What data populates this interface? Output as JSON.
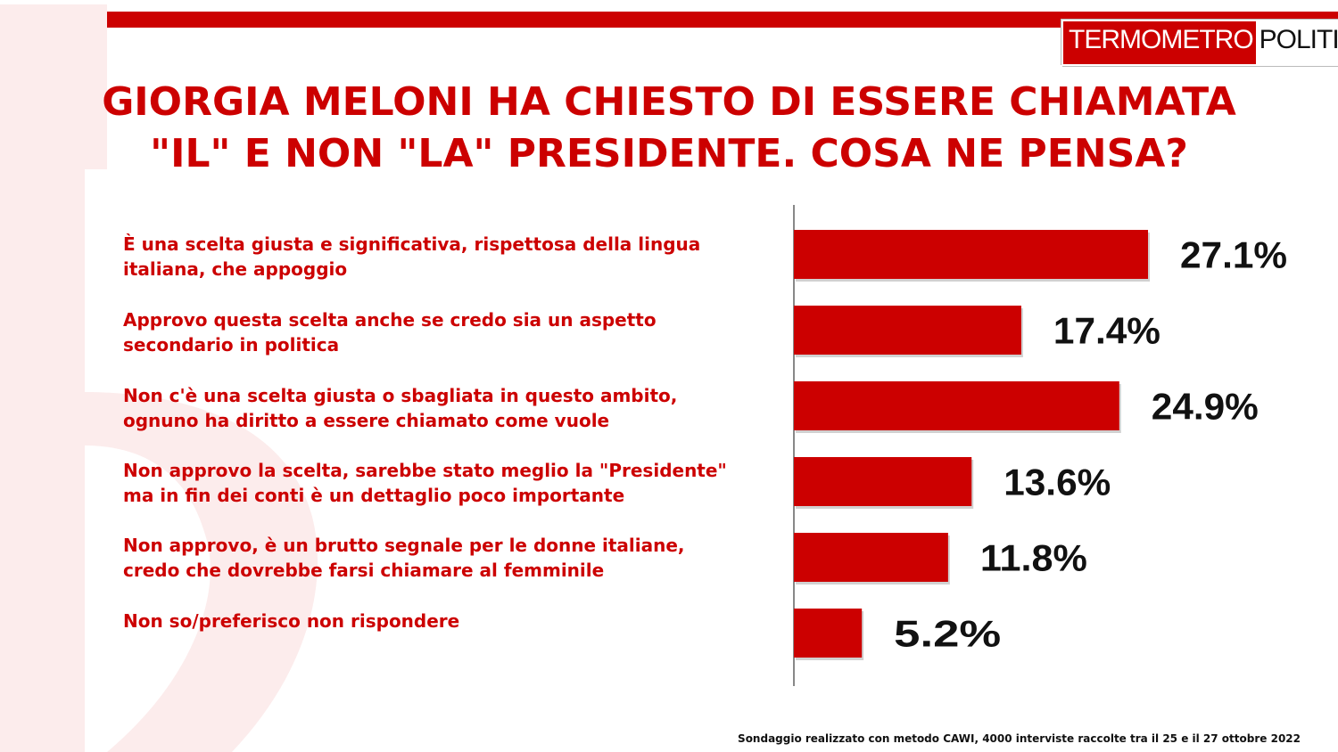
{
  "brand": {
    "part1": "TERMOMETRO",
    "part2": "POLITICO",
    "color": "#cc0000"
  },
  "title": {
    "line1": "GIORGIA MELONI HA CHIESTO DI ESSERE CHIAMATA",
    "line2": "\"IL\" E NON \"LA\" PRESIDENTE. COSA NE PENSA?"
  },
  "chart_data": {
    "type": "bar",
    "orientation": "horizontal",
    "categories": [
      "È una scelta giusta e significativa, rispettosa della lingua\nitaliana, che appoggio",
      "Approvo questa scelta anche se credo sia un aspetto\nsecondario in politica",
      "Non c'è una scelta giusta o sbagliata in questo ambito,\nognuno ha diritto a essere chiamato come vuole",
      "Non approvo la scelta, sarebbe stato meglio la \"Presidente\"\nma in fin dei conti è un dettaglio poco importante",
      "Non approvo, è un brutto segnale per le donne italiane,\ncredo che dovrebbe farsi chiamare al femminile",
      "Non so/preferisco non rispondere"
    ],
    "values": [
      27.1,
      17.4,
      24.9,
      13.6,
      11.8,
      5.2
    ],
    "labels": [
      "27.1%",
      "17.4%",
      "24.9%",
      "13.6%",
      "11.8%",
      "5.2%"
    ],
    "bar_color": "#cc0000",
    "xlim": [
      0,
      40
    ],
    "grid": false
  },
  "footnote": "Sondaggio realizzato con metodo CAWI, 4000 interviste raccolte tra il 25 e il 27 ottobre 2022"
}
